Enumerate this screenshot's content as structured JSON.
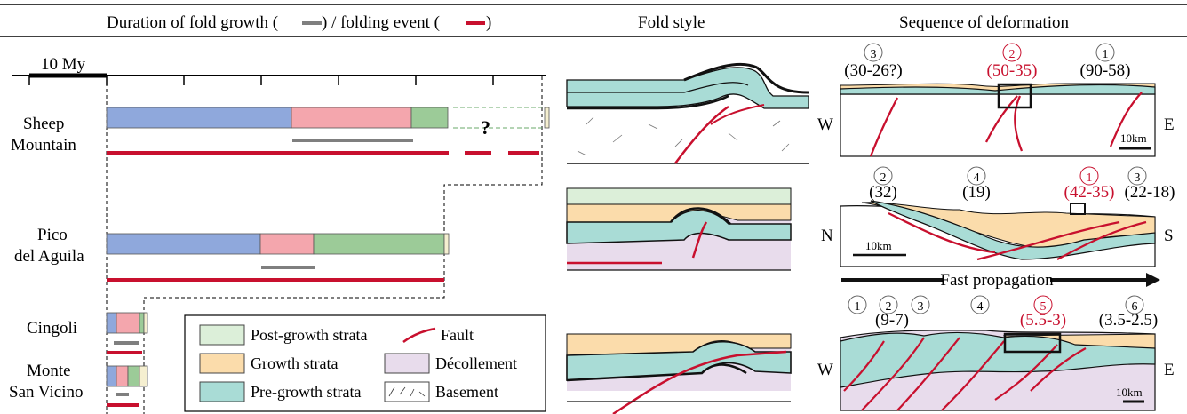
{
  "headers": {
    "duration_prefix": "Duration of fold growth (",
    "duration_mid": ") / folding event (",
    "duration_suffix": ")",
    "fold_style": "Fold style",
    "sequence": "Sequence of deformation"
  },
  "scale": {
    "label": "10 My"
  },
  "folds": [
    {
      "name_line1": "Sheep",
      "name_line2": "Mountain",
      "uncertain_mark": "?"
    },
    {
      "name_line1": "Pico",
      "name_line2": "del Aguila"
    },
    {
      "name_line1": "Cingoli",
      "name_line2": ""
    },
    {
      "name_line1": "Monte",
      "name_line2": "San Vicino"
    }
  ],
  "legend": {
    "post_growth": "Post-growth strata",
    "growth": "Growth strata",
    "pre_growth": "Pre-growth strata",
    "fault": "Fault",
    "decollement": "Décollement",
    "basement": "Basement"
  },
  "sections": [
    {
      "left": "W",
      "right": "E",
      "scale": "10km",
      "events": [
        {
          "num": "3",
          "age": "(30-26?)",
          "highlight": false
        },
        {
          "num": "2",
          "age": "(50-35)",
          "highlight": true
        },
        {
          "num": "1",
          "age": "(90-58)",
          "highlight": false
        }
      ]
    },
    {
      "left": "N",
      "right": "S",
      "scale": "10km",
      "events": [
        {
          "num": "2",
          "age": "(32)",
          "highlight": false
        },
        {
          "num": "4",
          "age": "(19)",
          "highlight": false
        },
        {
          "num": "1",
          "age": "(42-35)",
          "highlight": true
        },
        {
          "num": "3",
          "age": "(22-18)",
          "highlight": false
        }
      ]
    },
    {
      "left": "W",
      "right": "E",
      "scale": "10km",
      "propagation": "Fast propagation",
      "events": [
        {
          "num": "1",
          "age": "",
          "highlight": false
        },
        {
          "num": "2",
          "age": "(9-7)",
          "highlight": false
        },
        {
          "num": "3",
          "age": "",
          "highlight": false
        },
        {
          "num": "4",
          "age": "",
          "highlight": false
        },
        {
          "num": "5",
          "age": "(5.5-3)",
          "highlight": true
        },
        {
          "num": "6",
          "age": "(3.5-2.5)",
          "highlight": false
        }
      ]
    }
  ],
  "colors": {
    "pre_growth": "#8fa8dc",
    "growth": "#f4a6ad",
    "post_growth": "#9ccb98",
    "fill_post": "#dcefd9",
    "fill_growth": "#fbdcab",
    "fill_pre": "#a9dcd6",
    "fill_decollement": "#e8dcec",
    "fault": "#c8102e",
    "duration": "#7f7f7f"
  }
}
